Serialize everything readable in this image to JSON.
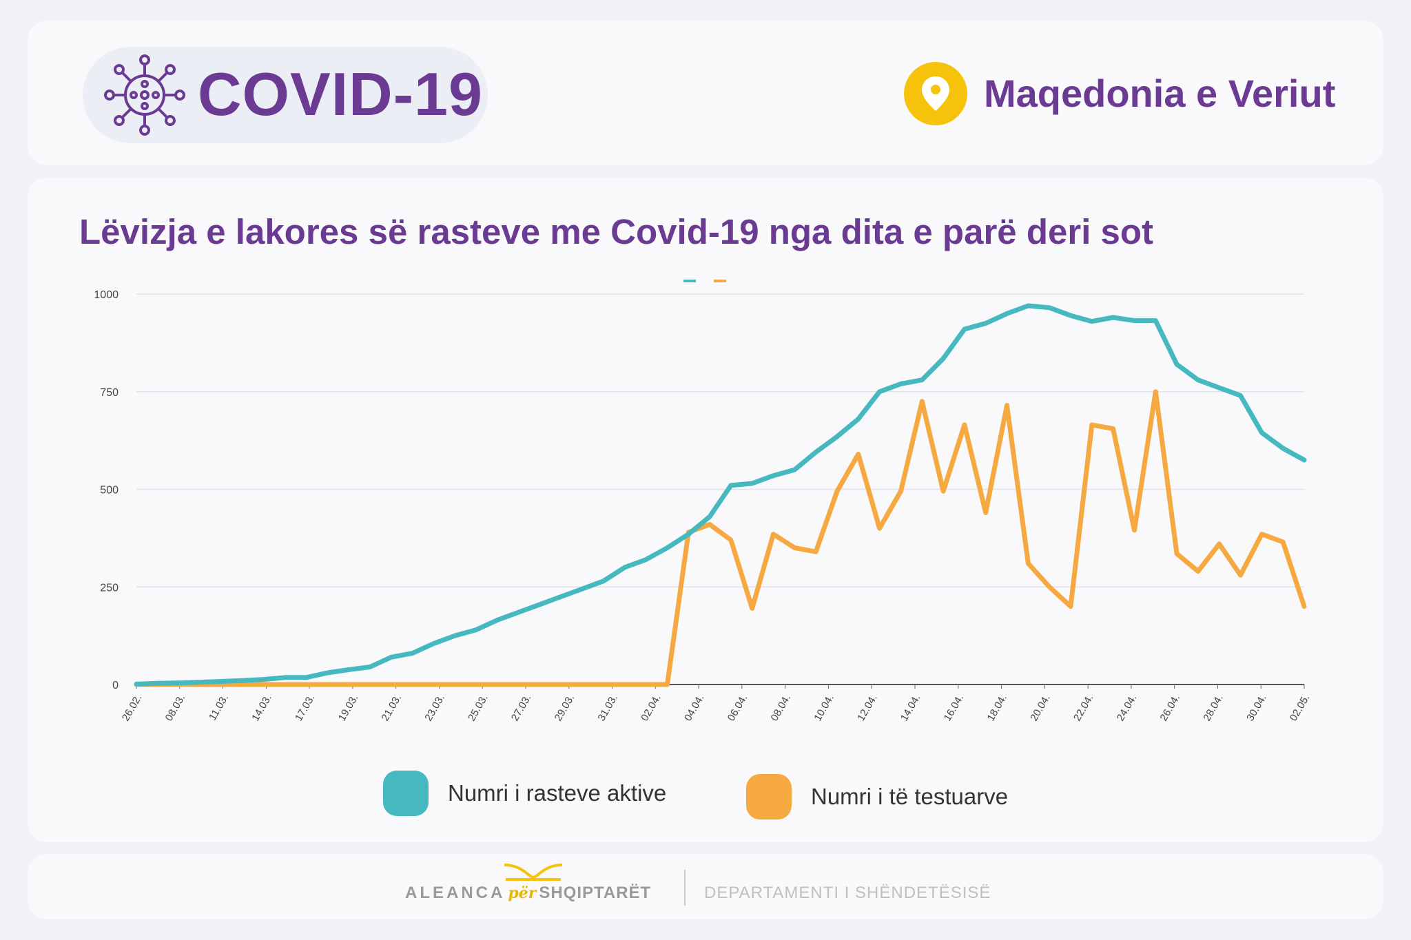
{
  "header": {
    "brand_title": "COVID-19",
    "location": "Maqedonia e Veriut"
  },
  "colors": {
    "purple": "#6b3a93",
    "active": "#45b9bf",
    "tested": "#f5a940",
    "pin": "#f6c20b"
  },
  "chart_data": {
    "type": "line",
    "title": "Lëvizja e lakores së rasteve me Covid-19 nga dita e parë deri sot",
    "ylim": [
      0,
      1000
    ],
    "yticks": [
      0,
      250,
      500,
      750,
      1000
    ],
    "xtick_labels": [
      "26.02.",
      "08.03.",
      "11.03.",
      "14.03.",
      "17.03.",
      "19.03.",
      "21.03.",
      "23.03.",
      "25.03.",
      "27.03.",
      "29.03.",
      "31.03.",
      "02.04.",
      "04.04.",
      "06.04.",
      "08.04.",
      "10.04.",
      "12.04.",
      "14.04.",
      "16.04.",
      "18.04.",
      "20.04.",
      "22.04.",
      "24.04.",
      "26.04.",
      "28.04.",
      "30.04.",
      "02.05."
    ],
    "n_points": 56,
    "series": [
      {
        "name": "Numri i rasteve aktive",
        "values": [
          1,
          3,
          4,
          6,
          8,
          10,
          13,
          18,
          18,
          30,
          38,
          45,
          70,
          80,
          105,
          125,
          140,
          165,
          185,
          205,
          225,
          245,
          265,
          300,
          320,
          350,
          385,
          430,
          510,
          515,
          535,
          550,
          595,
          635,
          680,
          750,
          770,
          780,
          835,
          910,
          925,
          950,
          970,
          965,
          945,
          930,
          940,
          932,
          932,
          820,
          780,
          760,
          740,
          645,
          605,
          575
        ]
      },
      {
        "name": "Numri i të testuarve",
        "values": [
          0,
          0,
          0,
          0,
          0,
          0,
          0,
          0,
          0,
          0,
          0,
          0,
          0,
          0,
          0,
          0,
          0,
          0,
          0,
          0,
          0,
          0,
          0,
          0,
          0,
          0,
          390,
          410,
          370,
          195,
          385,
          350,
          340,
          495,
          590,
          400,
          495,
          725,
          495,
          665,
          440,
          715,
          310,
          250,
          200,
          665,
          655,
          395,
          750,
          335,
          290,
          360,
          280,
          385,
          365,
          200
        ]
      }
    ]
  },
  "legend": {
    "active": "Numri i rasteve aktive",
    "tested": "Numri i të testuarve"
  },
  "footer": {
    "org_a": "ALEANCA",
    "org_per": "për",
    "org_b": "SHQIPTARËT",
    "department": "DEPARTAMENTI I SHËNDETËSISË"
  }
}
